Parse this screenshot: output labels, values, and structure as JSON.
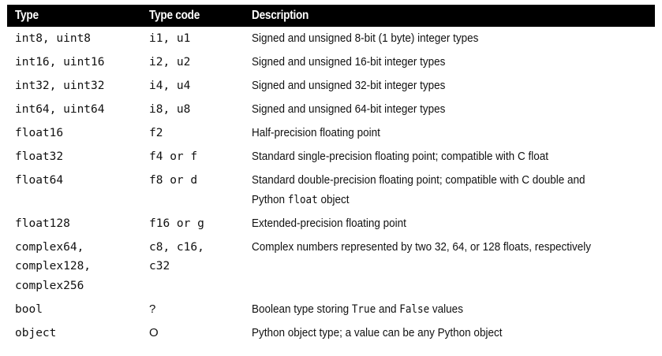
{
  "headers": {
    "type": "Type",
    "type_code": "Type code",
    "description": "Description"
  },
  "rows": [
    {
      "type": [
        "int8, uint8"
      ],
      "code": [
        "i1, u1"
      ],
      "desc": [
        [
          "Signed and unsigned 8-bit (1 byte) integer types"
        ]
      ]
    },
    {
      "type": [
        "int16, uint16"
      ],
      "code": [
        "i2, u2"
      ],
      "desc": [
        [
          "Signed and unsigned 16-bit integer types"
        ]
      ]
    },
    {
      "type": [
        "int32, uint32"
      ],
      "code": [
        "i4, u4"
      ],
      "desc": [
        [
          "Signed and unsigned 32-bit integer types"
        ]
      ]
    },
    {
      "type": [
        "int64, uint64"
      ],
      "code": [
        "i8, u8"
      ],
      "desc": [
        [
          "Signed and unsigned 64-bit integer types"
        ]
      ]
    },
    {
      "type": [
        "float16"
      ],
      "code": [
        "f2"
      ],
      "desc": [
        [
          "Half-precision floating point"
        ]
      ]
    },
    {
      "type": [
        "float32"
      ],
      "code": [
        "f4 or f"
      ],
      "desc": [
        [
          "Standard single-precision floating point; compatible with C float"
        ]
      ]
    },
    {
      "type": [
        "float64"
      ],
      "code": [
        "f8 or d"
      ],
      "desc": [
        [
          "Standard double-precision floating point; compatible with C double and"
        ],
        [
          "Python ",
          "float",
          " object"
        ]
      ]
    },
    {
      "type": [
        "float128"
      ],
      "code": [
        "f16 or g"
      ],
      "desc": [
        [
          "Extended-precision floating point"
        ]
      ]
    },
    {
      "type": [
        "complex64,",
        "complex128,",
        "complex256"
      ],
      "code": [
        "c8, c16,",
        "c32"
      ],
      "desc": [
        [
          "Complex numbers represented by two 32, 64, or 128 floats, respectively"
        ]
      ]
    },
    {
      "type": [
        "bool"
      ],
      "code": [
        "?"
      ],
      "desc": [
        [
          "Boolean type storing ",
          "True",
          " and ",
          "False",
          " values"
        ]
      ]
    },
    {
      "type": [
        "object"
      ],
      "code": [
        "O"
      ],
      "desc": [
        [
          "Python object type; a value can be any Python object"
        ]
      ]
    }
  ]
}
